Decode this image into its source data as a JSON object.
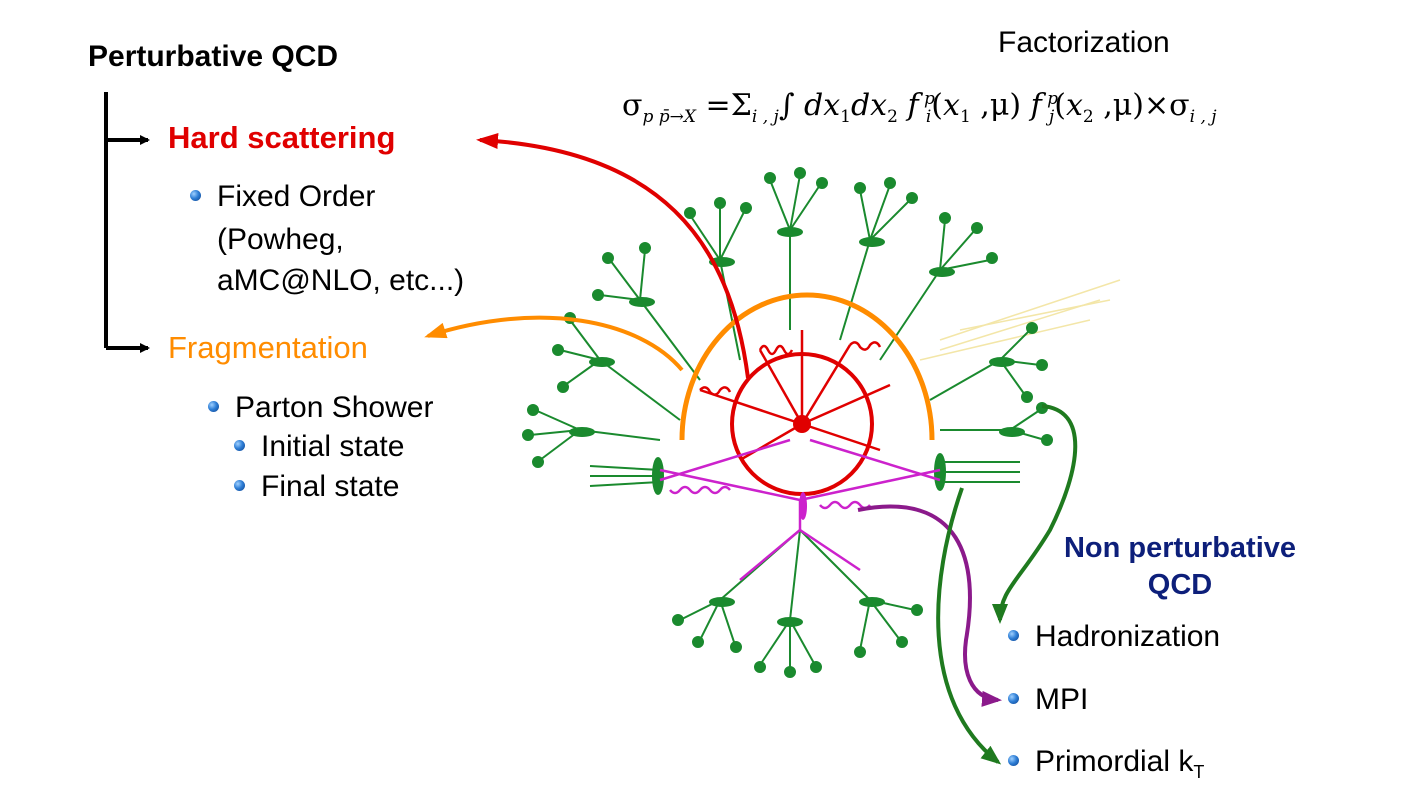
{
  "left": {
    "title": "Perturbative QCD",
    "hard_scattering": "Hard scattering",
    "fixed_order": [
      "Fixed Order",
      "(Powheg,",
      "aMC@NLO, etc...)"
    ],
    "fragmentation": "Fragmentation",
    "parton_shower": "Parton Shower",
    "initial_state": "Initial state",
    "final_state": "Final state"
  },
  "top": {
    "title": "Factorization"
  },
  "right": {
    "title": "Non perturbative QCD",
    "items": [
      "Hadronization",
      "MPI",
      "Primordial k"
    ],
    "kt_subscript": "T"
  },
  "colors": {
    "hard": "#e00000",
    "fragmentation": "#ff8c00",
    "np_title": "#0d1f7a",
    "hadron": "#1a8a2e",
    "mpi": "#cc22cc",
    "mpi_arrow": "#8b1a8b",
    "arrow_green": "#1f7a1f"
  }
}
